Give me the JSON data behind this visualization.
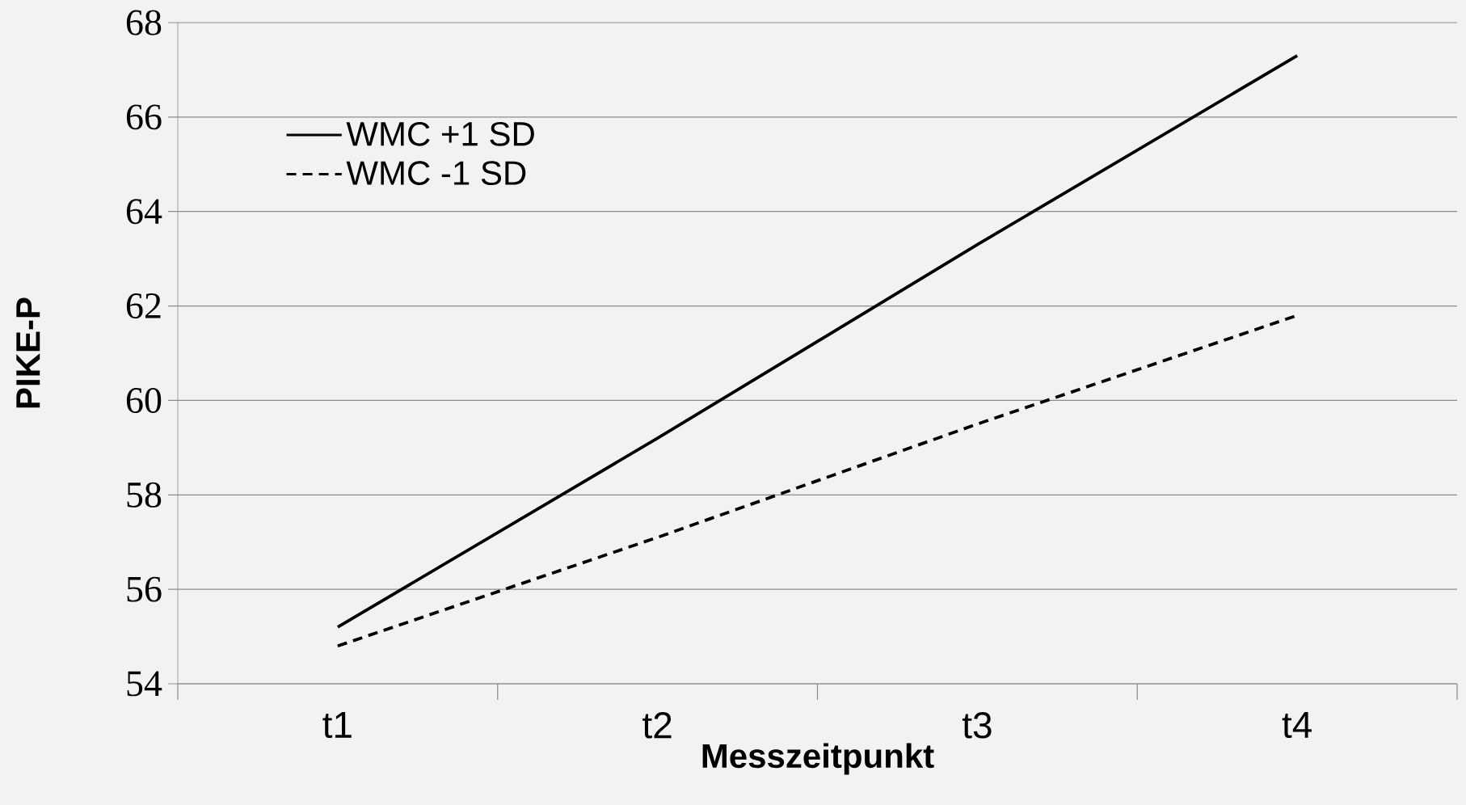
{
  "chart_data": {
    "type": "line",
    "xlabel": "Messzeitpunkt",
    "ylabel": "PIKE-P",
    "categories": [
      "t1",
      "t2",
      "t3",
      "t4"
    ],
    "series": [
      {
        "name": "WMC +1 SD",
        "color": "#000000",
        "line_style": "solid",
        "values": [
          55.2,
          59.2,
          63.3,
          67.3
        ]
      },
      {
        "name": "WMC -1 SD",
        "color": "#000000",
        "line_style": "dashed",
        "values": [
          54.8,
          57.1,
          59.5,
          61.8
        ]
      }
    ],
    "ylim": [
      54,
      68
    ],
    "yticks": [
      54,
      56,
      58,
      60,
      62,
      64,
      66,
      68
    ],
    "grid": "y",
    "legend": "top left",
    "marker": "none"
  }
}
